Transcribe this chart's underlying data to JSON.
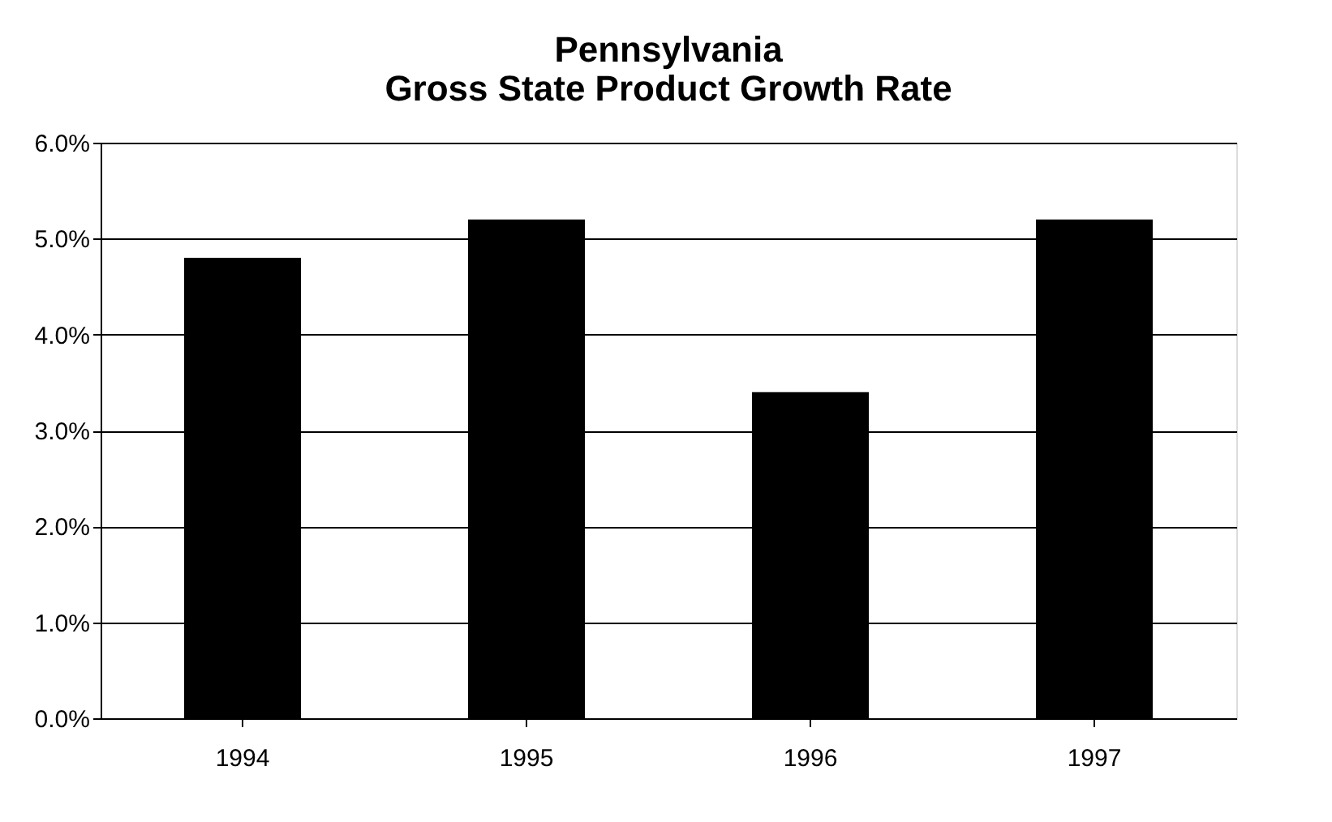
{
  "chart_data": {
    "type": "bar",
    "title": [
      "Pennsylvania",
      "Gross State Product Growth Rate"
    ],
    "categories": [
      "1994",
      "1995",
      "1996",
      "1997"
    ],
    "values": [
      4.8,
      5.2,
      3.4,
      5.2
    ],
    "color": "#000000",
    "ylim": [
      0,
      6
    ],
    "yticks": [
      {
        "value": 0,
        "label": "0.0%"
      },
      {
        "value": 1,
        "label": "1.0%"
      },
      {
        "value": 2,
        "label": "2.0%"
      },
      {
        "value": 3,
        "label": "3.0%"
      },
      {
        "value": 4,
        "label": "4.0%"
      },
      {
        "value": 5,
        "label": "5.0%"
      },
      {
        "value": 6,
        "label": "6.0%"
      }
    ],
    "grid": "y"
  }
}
